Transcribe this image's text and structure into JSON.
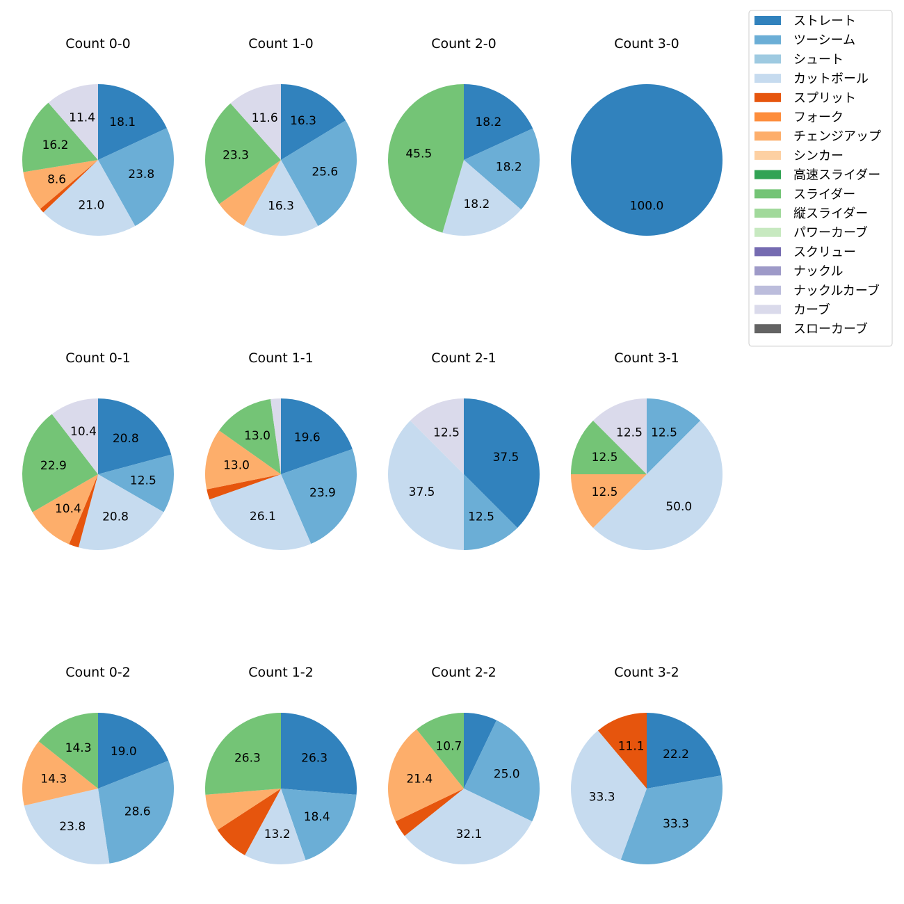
{
  "chart_data": {
    "type": "pie",
    "legend_position": "top-right",
    "categories": [
      {
        "name": "ストレート",
        "color": "#3182bd"
      },
      {
        "name": "ツーシーム",
        "color": "#6baed6"
      },
      {
        "name": "シュート",
        "color": "#9ecae1"
      },
      {
        "name": "カットボール",
        "color": "#c6dbef"
      },
      {
        "name": "スプリット",
        "color": "#e6550d"
      },
      {
        "name": "フォーク",
        "color": "#fd8d3c"
      },
      {
        "name": "チェンジアップ",
        "color": "#fdae6b"
      },
      {
        "name": "シンカー",
        "color": "#fdd0a2"
      },
      {
        "name": "高速スライダー",
        "color": "#31a354"
      },
      {
        "name": "スライダー",
        "color": "#74c476"
      },
      {
        "name": "縦スライダー",
        "color": "#a1d99b"
      },
      {
        "name": "パワーカーブ",
        "color": "#c7e9c0"
      },
      {
        "name": "スクリュー",
        "color": "#756bb1"
      },
      {
        "name": "ナックル",
        "color": "#9e9ac8"
      },
      {
        "name": "ナックルカーブ",
        "color": "#bcbddc"
      },
      {
        "name": "カーブ",
        "color": "#dadaeb"
      },
      {
        "name": "スローカーブ",
        "color": "#636363"
      }
    ],
    "pies": [
      {
        "title": "Count 0-0",
        "slices": [
          {
            "category": "ストレート",
            "value": 18.1,
            "label": "18.1"
          },
          {
            "category": "ツーシーム",
            "value": 23.8,
            "label": "23.8"
          },
          {
            "category": "カットボール",
            "value": 21.0,
            "label": "21.0"
          },
          {
            "category": "スプリット",
            "value": 1.0,
            "label": ""
          },
          {
            "category": "チェンジアップ",
            "value": 8.6,
            "label": "8.6"
          },
          {
            "category": "スライダー",
            "value": 16.2,
            "label": "16.2"
          },
          {
            "category": "カーブ",
            "value": 11.4,
            "label": "11.4"
          }
        ]
      },
      {
        "title": "Count 1-0",
        "slices": [
          {
            "category": "ストレート",
            "value": 16.3,
            "label": "16.3"
          },
          {
            "category": "ツーシーム",
            "value": 25.6,
            "label": "25.6"
          },
          {
            "category": "カットボール",
            "value": 16.3,
            "label": "16.3"
          },
          {
            "category": "チェンジアップ",
            "value": 7.0,
            "label": ""
          },
          {
            "category": "スライダー",
            "value": 23.3,
            "label": "23.3"
          },
          {
            "category": "カーブ",
            "value": 11.6,
            "label": "11.6"
          }
        ]
      },
      {
        "title": "Count 2-0",
        "slices": [
          {
            "category": "ストレート",
            "value": 18.2,
            "label": "18.2"
          },
          {
            "category": "ツーシーム",
            "value": 18.2,
            "label": "18.2"
          },
          {
            "category": "カットボール",
            "value": 18.2,
            "label": "18.2"
          },
          {
            "category": "スライダー",
            "value": 45.5,
            "label": "45.5"
          }
        ]
      },
      {
        "title": "Count 3-0",
        "slices": [
          {
            "category": "ストレート",
            "value": 100.0,
            "label": "100.0"
          }
        ]
      },
      {
        "title": "Count 0-1",
        "slices": [
          {
            "category": "ストレート",
            "value": 20.8,
            "label": "20.8"
          },
          {
            "category": "ツーシーム",
            "value": 12.5,
            "label": "12.5"
          },
          {
            "category": "カットボール",
            "value": 20.8,
            "label": "20.8"
          },
          {
            "category": "スプリット",
            "value": 2.1,
            "label": ""
          },
          {
            "category": "チェンジアップ",
            "value": 10.4,
            "label": "10.4"
          },
          {
            "category": "スライダー",
            "value": 22.9,
            "label": "22.9"
          },
          {
            "category": "カーブ",
            "value": 10.4,
            "label": "10.4"
          }
        ]
      },
      {
        "title": "Count 1-1",
        "slices": [
          {
            "category": "ストレート",
            "value": 19.6,
            "label": "19.6"
          },
          {
            "category": "ツーシーム",
            "value": 23.9,
            "label": "23.9"
          },
          {
            "category": "カットボール",
            "value": 26.1,
            "label": "26.1"
          },
          {
            "category": "スプリット",
            "value": 2.2,
            "label": ""
          },
          {
            "category": "チェンジアップ",
            "value": 13.0,
            "label": "13.0"
          },
          {
            "category": "スライダー",
            "value": 13.0,
            "label": "13.0"
          },
          {
            "category": "カーブ",
            "value": 2.2,
            "label": ""
          }
        ]
      },
      {
        "title": "Count 2-1",
        "slices": [
          {
            "category": "ストレート",
            "value": 37.5,
            "label": "37.5"
          },
          {
            "category": "ツーシーム",
            "value": 12.5,
            "label": "12.5"
          },
          {
            "category": "カットボール",
            "value": 37.5,
            "label": "37.5"
          },
          {
            "category": "カーブ",
            "value": 12.5,
            "label": "12.5"
          }
        ]
      },
      {
        "title": "Count 3-1",
        "slices": [
          {
            "category": "ツーシーム",
            "value": 12.5,
            "label": "12.5"
          },
          {
            "category": "カットボール",
            "value": 50.0,
            "label": "50.0"
          },
          {
            "category": "チェンジアップ",
            "value": 12.5,
            "label": "12.5"
          },
          {
            "category": "スライダー",
            "value": 12.5,
            "label": "12.5"
          },
          {
            "category": "カーブ",
            "value": 12.5,
            "label": "12.5"
          }
        ]
      },
      {
        "title": "Count 0-2",
        "slices": [
          {
            "category": "ストレート",
            "value": 19.0,
            "label": "19.0"
          },
          {
            "category": "ツーシーム",
            "value": 28.6,
            "label": "28.6"
          },
          {
            "category": "カットボール",
            "value": 23.8,
            "label": "23.8"
          },
          {
            "category": "チェンジアップ",
            "value": 14.3,
            "label": "14.3"
          },
          {
            "category": "スライダー",
            "value": 14.3,
            "label": "14.3"
          }
        ]
      },
      {
        "title": "Count 1-2",
        "slices": [
          {
            "category": "ストレート",
            "value": 26.3,
            "label": "26.3"
          },
          {
            "category": "ツーシーム",
            "value": 18.4,
            "label": "18.4"
          },
          {
            "category": "カットボール",
            "value": 13.2,
            "label": "13.2"
          },
          {
            "category": "スプリット",
            "value": 7.9,
            "label": ""
          },
          {
            "category": "チェンジアップ",
            "value": 7.9,
            "label": ""
          },
          {
            "category": "スライダー",
            "value": 26.3,
            "label": "26.3"
          }
        ]
      },
      {
        "title": "Count 2-2",
        "slices": [
          {
            "category": "ストレート",
            "value": 7.1,
            "label": ""
          },
          {
            "category": "ツーシーム",
            "value": 25.0,
            "label": "25.0"
          },
          {
            "category": "カットボール",
            "value": 32.1,
            "label": "32.1"
          },
          {
            "category": "スプリット",
            "value": 3.6,
            "label": ""
          },
          {
            "category": "チェンジアップ",
            "value": 21.4,
            "label": "21.4"
          },
          {
            "category": "スライダー",
            "value": 10.7,
            "label": "10.7"
          }
        ]
      },
      {
        "title": "Count 3-2",
        "slices": [
          {
            "category": "ストレート",
            "value": 22.2,
            "label": "22.2"
          },
          {
            "category": "ツーシーム",
            "value": 33.3,
            "label": "33.3"
          },
          {
            "category": "カットボール",
            "value": 33.3,
            "label": "33.3"
          },
          {
            "category": "スプリット",
            "value": 11.1,
            "label": "11.1"
          }
        ]
      }
    ]
  }
}
